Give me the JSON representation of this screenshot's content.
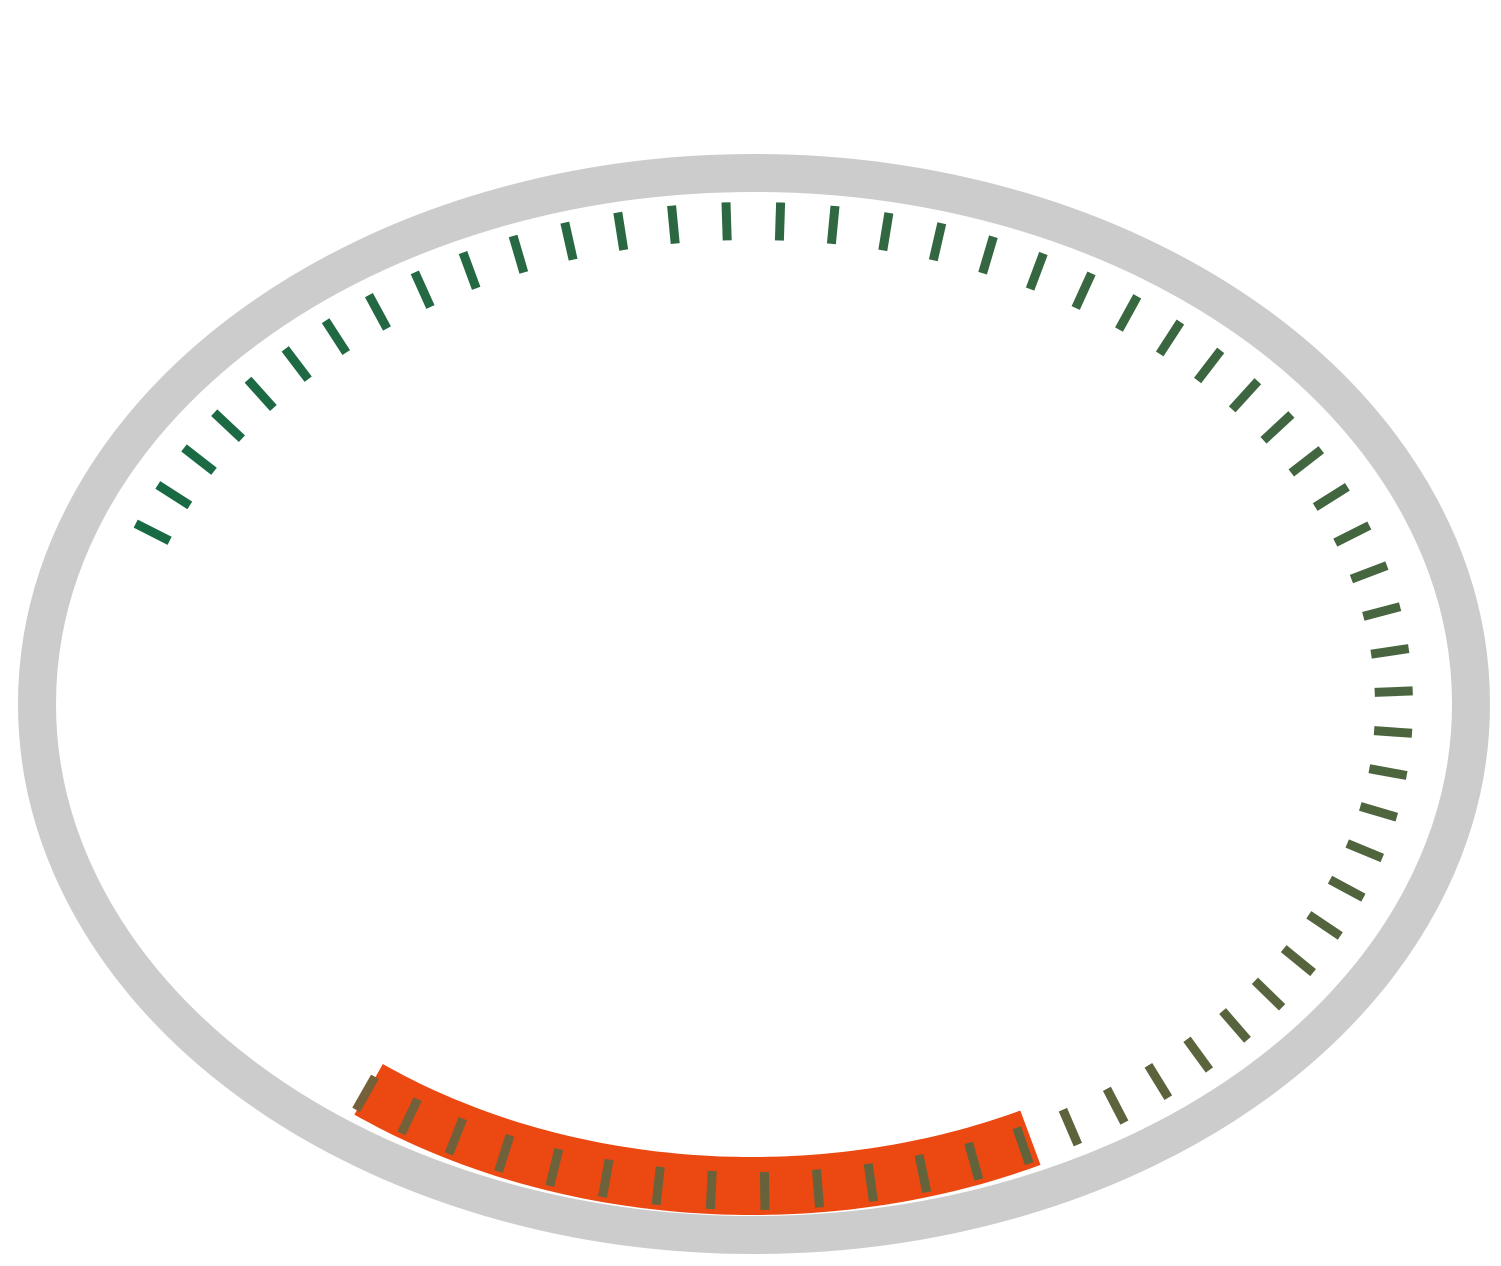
{
  "gauge": {
    "type": "radial-gauge",
    "range": [
      0,
      100
    ],
    "value": 22,
    "tick_count": 61,
    "tick_color_start": "#74613A",
    "tick_color_end": "#176A44",
    "progress_color": "#EC4812",
    "track_color": "#CCCCCC",
    "background_color": "#FFFFFF"
  }
}
